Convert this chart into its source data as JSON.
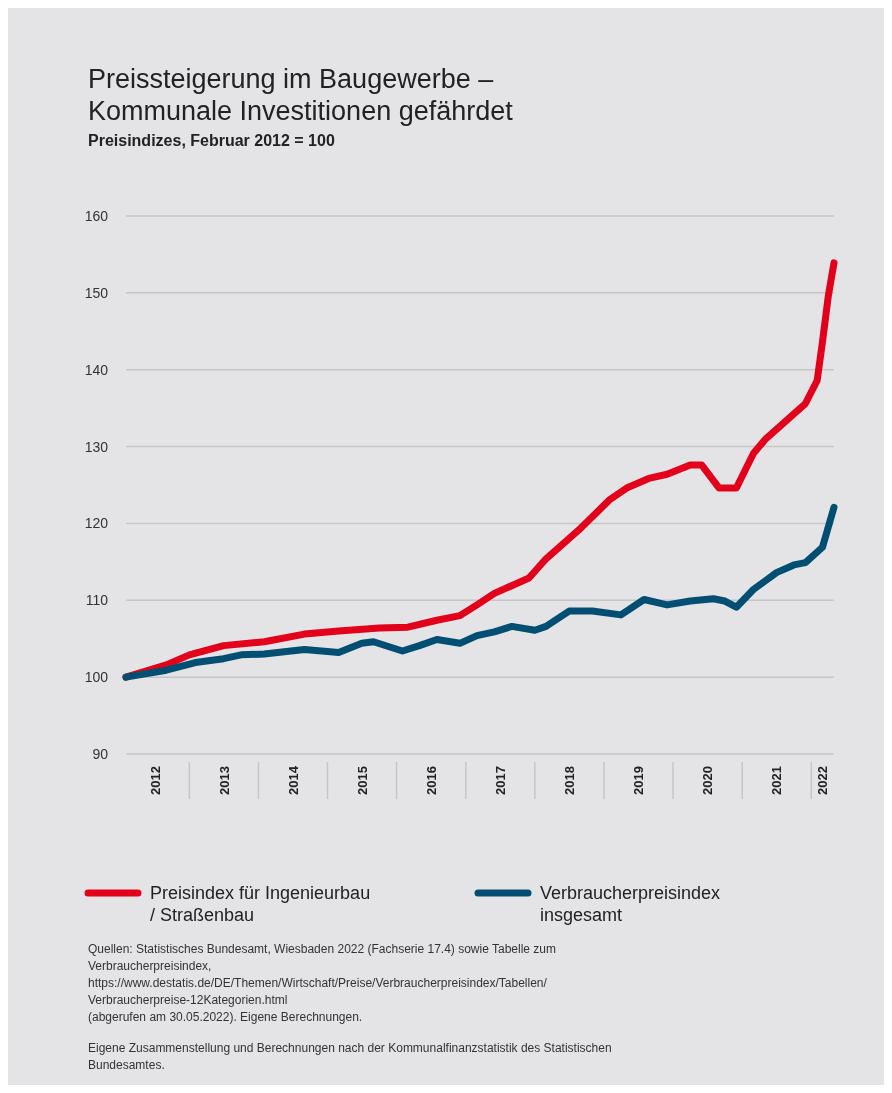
{
  "chart_data": {
    "type": "line",
    "title": "Preissteigerung im Baugewerbe –\nKommunale Investitionen gefährdet",
    "subtitle": "Preisindizes, Februar 2012 = 100",
    "x": [
      "2012-02",
      "2012-09",
      "2013-01",
      "2013-07",
      "2014-02",
      "2014-09",
      "2015-03",
      "2015-10",
      "2016-03",
      "2016-08",
      "2016-12",
      "2017-03",
      "2017-06",
      "2017-12",
      "2018-03",
      "2018-09",
      "2019-02",
      "2019-05",
      "2019-09",
      "2019-12",
      "2020-04",
      "2020-06",
      "2020-09",
      "2020-12",
      "2021-03",
      "2021-05",
      "2021-12",
      "2022-02",
      "2022-03",
      "2022-04",
      "2022-05"
    ],
    "series": [
      {
        "name": "Preisindex für Ingenieurbau / Straßenbau",
        "color": "#e2001a",
        "values": [
          100,
          101.6,
          102.9,
          104.1,
          104.6,
          105.6,
          106,
          106.4,
          106.5,
          107.4,
          108,
          109.4,
          110.9,
          112.9,
          115.4,
          119.4,
          123.1,
          124.6,
          125.9,
          126.4,
          127.6,
          127.6,
          124.6,
          124.6,
          129.1,
          130.9,
          135.6,
          138.6,
          143.6,
          149.6,
          153.9
        ]
      },
      {
        "name": "Verbraucherpreisindex insgesamt",
        "color": "#004f73",
        "x": [
          "2012-02",
          "2012-09",
          "2013-02",
          "2013-07",
          "2013-10",
          "2014-02",
          "2014-09",
          "2015-03",
          "2015-07",
          "2015-09",
          "2016-02",
          "2016-05",
          "2016-08",
          "2016-12",
          "2017-03",
          "2017-06",
          "2017-09",
          "2018-01",
          "2018-03",
          "2018-07",
          "2018-11",
          "2019-04",
          "2019-08",
          "2019-12",
          "2020-04",
          "2020-08",
          "2020-10",
          "2020-12",
          "2021-03",
          "2021-07",
          "2021-10",
          "2021-12",
          "2022-03",
          "2022-05"
        ],
        "values": [
          100,
          100.9,
          101.9,
          102.4,
          102.9,
          103,
          103.6,
          103.2,
          104.4,
          104.6,
          103.4,
          104.1,
          104.9,
          104.4,
          105.4,
          105.9,
          106.6,
          106.1,
          106.6,
          108.6,
          108.6,
          108.1,
          110.1,
          109.4,
          109.9,
          110.2,
          109.9,
          109.1,
          111.4,
          113.6,
          114.6,
          114.9,
          116.9,
          122.1
        ]
      }
    ],
    "xlim": [
      "2012-02",
      "2022-05"
    ],
    "xticks": [
      {
        "value": "2012-07",
        "label": "2012"
      },
      {
        "value": "2013-07",
        "label": "2013"
      },
      {
        "value": "2014-07",
        "label": "2014"
      },
      {
        "value": "2015-07",
        "label": "2015"
      },
      {
        "value": "2016-07",
        "label": "2016"
      },
      {
        "value": "2017-07",
        "label": "2017"
      },
      {
        "value": "2018-07",
        "label": "2018"
      },
      {
        "value": "2019-07",
        "label": "2019"
      },
      {
        "value": "2020-07",
        "label": "2020"
      },
      {
        "value": "2021-07",
        "label": "2021"
      },
      {
        "value": "2022-03",
        "label": "2022"
      }
    ],
    "ylim": [
      90,
      160
    ],
    "yticks": [
      90,
      100,
      110,
      120,
      130,
      140,
      150,
      160
    ],
    "grid": "y",
    "legend": "bottom",
    "marker": "none",
    "line_style": "solid",
    "annotations": [
      "Quellen: Statistisches Bundesamt, Wiesbaden 2022 (Fachserie 17.4) sowie Tabelle zum Verbraucherpreisindex, https://www.destatis.de/DE/Themen/Wirtschaft/Preise/Verbraucherpreisindex/Tabellen/Verbraucherpreise-12Kategorien.html (abgerufen am 30.05.2022). Eigene Berechnungen.",
      "Eigene Zusammenstellung und Berechnungen nach der Kommunalfinanzstatistik des Statistischen Bundesamtes."
    ]
  }
}
